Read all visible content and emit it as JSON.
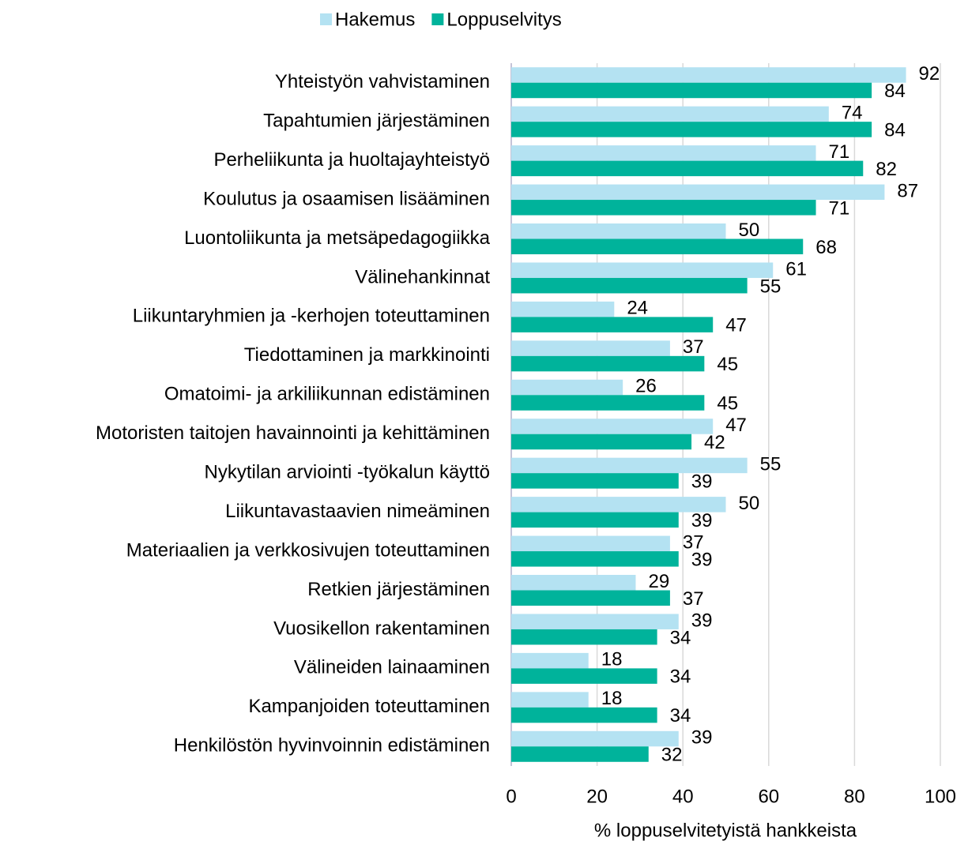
{
  "chart_data": {
    "type": "bar",
    "orientation": "horizontal",
    "x_label": "% loppuselvitetyistä hankkeista",
    "categories": [
      "Yhteistyön vahvistaminen",
      "Tapahtumien järjestäminen",
      "Perheliikunta ja huoltajayhteistyö",
      "Koulutus ja osaamisen lisääminen",
      "Luontoliikunta ja metsäpedagogiikka",
      "Välinehankinnat",
      "Liikuntaryhmien ja -kerhojen toteuttaminen",
      "Tiedottaminen ja markkinointi",
      "Omatoimi- ja arkiliikunnan edistäminen",
      "Motoristen taitojen havainnointi ja kehittäminen",
      "Nykytilan arviointi -työkalun käyttö",
      "Liikuntavastaavien nimeäminen",
      "Materiaalien ja verkkosivujen toteuttaminen",
      "Retkien järjestäminen",
      "Vuosikellon rakentaminen",
      "Välineiden lainaaminen",
      "Kampanjoiden toteuttaminen",
      "Henkilöstön hyvinvoinnin edistäminen"
    ],
    "series": [
      {
        "name": "Hakemus",
        "color": "#b4e2f2",
        "values": [
          92,
          74,
          71,
          87,
          50,
          61,
          24,
          37,
          26,
          47,
          55,
          50,
          37,
          29,
          39,
          18,
          18,
          39
        ]
      },
      {
        "name": "Loppuselvitys",
        "color": "#00b39b",
        "values": [
          84,
          84,
          82,
          71,
          68,
          55,
          47,
          45,
          45,
          42,
          39,
          39,
          39,
          37,
          34,
          34,
          34,
          32
        ]
      }
    ],
    "xlim": [
      0,
      100
    ],
    "xticks": [
      0,
      20,
      40,
      60,
      80,
      100
    ],
    "grid": true,
    "legend": "top"
  }
}
